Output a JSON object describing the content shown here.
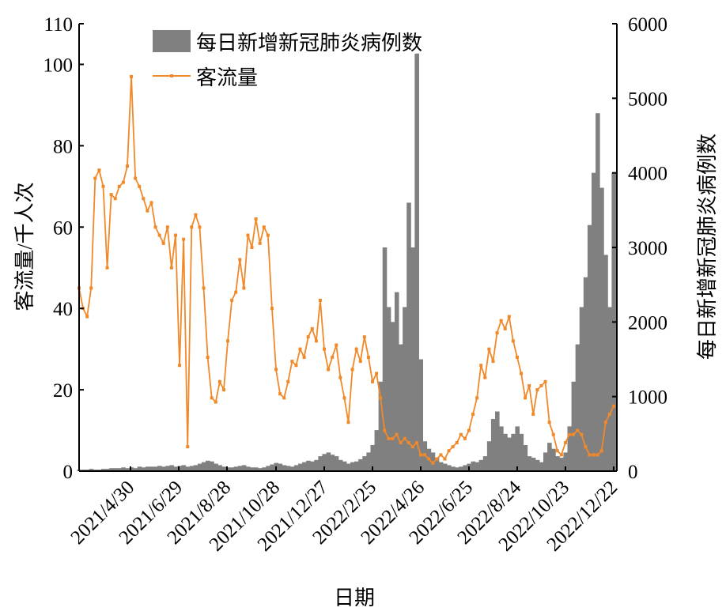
{
  "chart_data": {
    "type": "bar+line",
    "xlabel": "日期",
    "ylabel_left": "客流量/千人次",
    "ylabel_right": "每日新增新冠肺炎病例数",
    "ylim_left": [
      0,
      110
    ],
    "ylim_right": [
      0,
      6000
    ],
    "yticks_left": [
      0,
      20,
      40,
      60,
      80,
      100,
      110
    ],
    "yticks_right": [
      0,
      1000,
      2000,
      3000,
      4000,
      5000,
      6000
    ],
    "x_start_date": "2021/2/25",
    "x_end_day": 669,
    "sample_step_days": 5,
    "xticks": [
      {
        "label": "2021/4/30",
        "day": 64
      },
      {
        "label": "2021/6/29",
        "day": 124
      },
      {
        "label": "2021/8/28",
        "day": 184
      },
      {
        "label": "2021/10/28",
        "day": 245
      },
      {
        "label": "2021/12/27",
        "day": 305
      },
      {
        "label": "2022/2/25",
        "day": 365
      },
      {
        "label": "2022/4/26",
        "day": 425
      },
      {
        "label": "2022/6/25",
        "day": 485
      },
      {
        "label": "2022/8/24",
        "day": 545
      },
      {
        "label": "2022/10/23",
        "day": 605
      },
      {
        "label": "2022/12/22",
        "day": 665
      }
    ],
    "legend": [
      "每日新增新冠肺炎病例数",
      "客流量"
    ],
    "legend_position": "top",
    "series": [
      {
        "name": "每日新增新冠肺炎病例数",
        "type": "bar",
        "axis": "right",
        "color": "#808080",
        "values": [
          20,
          20,
          20,
          30,
          20,
          20,
          30,
          30,
          40,
          40,
          40,
          50,
          40,
          50,
          40,
          60,
          50,
          60,
          60,
          60,
          70,
          60,
          70,
          80,
          60,
          70,
          80,
          60,
          70,
          80,
          100,
          120,
          140,
          130,
          100,
          80,
          60,
          50,
          50,
          60,
          70,
          80,
          60,
          50,
          50,
          40,
          50,
          70,
          90,
          110,
          100,
          80,
          70,
          60,
          80,
          100,
          120,
          140,
          130,
          150,
          200,
          230,
          250,
          220,
          200,
          150,
          130,
          100,
          120,
          130,
          160,
          200,
          250,
          350,
          550,
          1200,
          3000,
          2200,
          2000,
          2400,
          1700,
          2200,
          3600,
          3000,
          5600,
          1500,
          400,
          300,
          250,
          180,
          120,
          100,
          80,
          60,
          50,
          60,
          80,
          100,
          130,
          120,
          150,
          200,
          400,
          700,
          800,
          600,
          500,
          450,
          500,
          600,
          500,
          350,
          200,
          180,
          150,
          120,
          250,
          380,
          300,
          200,
          180,
          250,
          600,
          1200,
          1700,
          2200,
          2600,
          3300,
          4000,
          4800,
          3800,
          2900,
          2200,
          4000
        ]
      },
      {
        "name": "客流量",
        "type": "line",
        "axis": "left",
        "color": "#F0892A",
        "values": [
          45,
          40,
          38,
          45,
          72,
          74,
          70,
          50,
          68,
          67,
          70,
          71,
          75,
          97,
          72,
          70,
          67,
          64,
          66,
          60,
          58,
          56,
          60,
          50,
          58,
          26,
          57,
          6,
          60,
          63,
          60,
          45,
          28,
          18,
          17,
          22,
          20,
          32,
          42,
          44,
          52,
          45,
          58,
          55,
          62,
          56,
          60,
          58,
          40,
          25,
          19,
          18,
          22,
          27,
          26,
          30,
          28,
          33,
          35,
          32,
          42,
          30,
          25,
          28,
          31,
          23,
          18,
          12,
          25,
          30,
          27,
          33,
          28,
          22,
          24,
          18,
          10,
          8,
          8,
          9,
          7,
          8,
          7,
          6,
          7,
          4,
          4,
          3,
          2,
          3,
          4,
          3,
          5,
          6,
          7,
          9,
          8,
          10,
          14,
          18,
          26,
          23,
          30,
          27,
          34,
          37,
          35,
          38,
          32,
          28,
          24,
          18,
          21,
          14,
          20,
          21,
          22,
          12,
          9,
          5,
          4,
          7,
          9,
          9,
          10,
          9,
          6,
          4,
          4,
          4,
          5,
          12,
          14,
          16
        ]
      }
    ]
  }
}
